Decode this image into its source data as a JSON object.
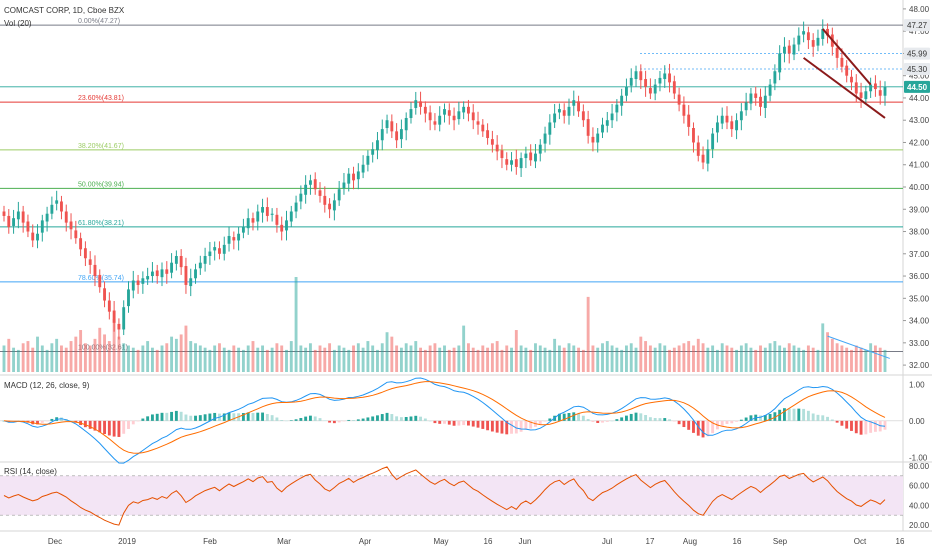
{
  "header": {
    "title": "COMCAST CORP, 1D, Cboe BZX",
    "volume_label": "Vol (20)"
  },
  "macd_label": "MACD (12, 26, close, 9)",
  "rsi_label": "RSI (14, close)",
  "colors": {
    "up": "#26a69a",
    "down": "#ef5350",
    "fib_0": "#787b86",
    "fib_236": "#e53935",
    "fib_382": "#9ccc65",
    "fib_500": "#4caf50",
    "fib_618": "#26a69a",
    "fib_786": "#42a5f5",
    "fib_100": "#787b86",
    "channel": "#8b1a1a",
    "macd_line": "#2196f3",
    "signal_line": "#ff6d00",
    "rsi_line": "#e65100",
    "rsi_band": "#f3e5f5",
    "last_price_tag": "#26a69a"
  },
  "chart_data": {
    "type": "candlestick",
    "price_ticks": [
      "48.00",
      "47.00",
      "46.00",
      "45.00",
      "44.00",
      "43.00",
      "42.00",
      "41.00",
      "40.00",
      "39.00",
      "38.00",
      "37.00",
      "36.00",
      "35.00",
      "34.00",
      "33.00",
      "32.00"
    ],
    "price_range": [
      31.6,
      48.4
    ],
    "x_labels": [
      "Dec",
      "2019",
      "Feb",
      "Mar",
      "Apr",
      "May",
      "16",
      "Jun",
      "Jul",
      "17",
      "Aug",
      "16",
      "Sep",
      "Oct",
      "16"
    ],
    "fib_levels": [
      {
        "label": "0.00%(47.27)",
        "price": 47.27,
        "color_key": "fib_0"
      },
      {
        "label": "23.60%(43.81)",
        "price": 43.81,
        "color_key": "fib_236"
      },
      {
        "label": "38.20%(41.67)",
        "price": 41.67,
        "color_key": "fib_382"
      },
      {
        "label": "50.00%(39.94)",
        "price": 39.94,
        "color_key": "fib_500"
      },
      {
        "label": "61.80%(38.21)",
        "price": 38.21,
        "color_key": "fib_618"
      },
      {
        "label": "78.60%(35.74)",
        "price": 35.74,
        "color_key": "fib_786"
      },
      {
        "label": "100.00%(32.61)",
        "price": 32.61,
        "color_key": "fib_100"
      }
    ],
    "price_tags": [
      {
        "label": "47.27",
        "price": 47.27,
        "style": "plain"
      },
      {
        "label": "45.99",
        "price": 45.99,
        "style": "plain"
      },
      {
        "label": "45.30",
        "price": 45.3,
        "style": "plain"
      },
      {
        "label": "44.50",
        "price": 44.5,
        "style": "last"
      }
    ],
    "closes": [
      38.7,
      38.2,
      38.6,
      38.9,
      38.4,
      38.0,
      37.6,
      37.9,
      38.5,
      38.8,
      39.2,
      39.4,
      38.9,
      38.4,
      38.1,
      37.7,
      37.2,
      36.8,
      36.5,
      36.0,
      35.5,
      34.9,
      34.4,
      33.9,
      33.6,
      34.6,
      35.4,
      35.8,
      35.6,
      35.9,
      36.0,
      36.2,
      36.0,
      36.3,
      36.1,
      36.6,
      36.9,
      36.4,
      35.6,
      35.9,
      36.3,
      36.6,
      36.9,
      37.1,
      37.3,
      37.0,
      37.4,
      37.8,
      37.6,
      37.9,
      38.2,
      38.6,
      38.4,
      38.9,
      39.1,
      38.7,
      38.8,
      38.3,
      38.0,
      38.5,
      38.9,
      39.3,
      39.7,
      40.1,
      40.3,
      39.9,
      39.6,
      39.2,
      39.0,
      39.4,
      39.9,
      40.2,
      40.6,
      40.3,
      40.7,
      41.0,
      41.4,
      41.7,
      42.1,
      42.6,
      43.0,
      42.5,
      42.1,
      42.6,
      43.1,
      43.5,
      43.9,
      43.6,
      43.3,
      43.0,
      42.8,
      43.2,
      43.5,
      43.2,
      43.0,
      43.4,
      43.6,
      43.3,
      43.0,
      42.8,
      42.5,
      42.2,
      41.9,
      41.6,
      41.3,
      41.0,
      41.2,
      40.9,
      41.3,
      41.5,
      41.2,
      41.5,
      41.9,
      42.4,
      42.9,
      43.3,
      43.5,
      43.2,
      43.6,
      43.9,
      43.4,
      43.0,
      42.3,
      42.0,
      42.4,
      42.8,
      43.0,
      43.3,
      43.7,
      44.1,
      44.5,
      44.9,
      45.2,
      44.8,
      44.5,
      44.2,
      44.6,
      44.9,
      45.1,
      44.7,
      44.2,
      43.7,
      43.2,
      42.7,
      42.0,
      41.4,
      41.1,
      41.7,
      42.4,
      42.9,
      43.2,
      42.9,
      42.6,
      43.0,
      43.4,
      43.8,
      44.2,
      44.0,
      43.6,
      44.1,
      44.6,
      45.2,
      46.0,
      46.3,
      46.0,
      46.4,
      46.8,
      47.0,
      46.6,
      46.3,
      46.7,
      47.1,
      46.8,
      46.3,
      45.8,
      45.4,
      45.0,
      44.7,
      44.2,
      44.0,
      44.3,
      44.6,
      44.4,
      44.1,
      44.5
    ],
    "volume": [
      1.2,
      1.5,
      1.1,
      1.0,
      1.3,
      1.4,
      1.1,
      1.6,
      1.2,
      1.0,
      1.3,
      1.5,
      1.2,
      1.1,
      1.4,
      1.6,
      1.9,
      1.3,
      1.2,
      1.5,
      2.0,
      1.7,
      1.4,
      2.4,
      1.6,
      1.3,
      1.2,
      1.1,
      1.0,
      1.2,
      1.4,
      1.1,
      1.0,
      1.2,
      1.3,
      1.6,
      1.5,
      1.7,
      2.1,
      1.4,
      1.3,
      1.2,
      1.1,
      1.0,
      1.2,
      1.3,
      1.1,
      1.0,
      1.2,
      1.1,
      1.0,
      1.2,
      1.4,
      1.1,
      1.2,
      1.0,
      1.1,
      1.3,
      1.2,
      1.0,
      1.4,
      4.3,
      1.2,
      1.1,
      1.3,
      1.0,
      1.2,
      1.1,
      1.3,
      1.0,
      1.2,
      1.1,
      1.0,
      1.2,
      1.3,
      1.1,
      1.4,
      1.2,
      1.0,
      1.3,
      1.8,
      1.6,
      1.2,
      1.1,
      1.3,
      1.2,
      1.4,
      1.1,
      1.0,
      1.2,
      1.3,
      1.1,
      1.2,
      1.0,
      1.1,
      1.2,
      2.1,
      1.3,
      1.1,
      1.0,
      1.2,
      1.1,
      1.3,
      1.4,
      1.0,
      1.2,
      1.1,
      1.9,
      1.2,
      1.1,
      1.0,
      1.3,
      1.2,
      1.1,
      1.0,
      1.5,
      1.2,
      1.1,
      1.3,
      1.2,
      1.1,
      1.0,
      3.4,
      1.2,
      1.1,
      1.3,
      1.4,
      1.2,
      1.1,
      1.0,
      1.2,
      1.3,
      1.1,
      1.6,
      1.4,
      1.2,
      1.1,
      1.3,
      1.2,
      1.0,
      1.1,
      1.2,
      1.3,
      1.4,
      1.2,
      1.5,
      1.3,
      1.1,
      1.2,
      1.0,
      1.3,
      1.2,
      1.1,
      1.0,
      1.2,
      1.3,
      1.1,
      1.0,
      1.2,
      1.1,
      1.3,
      1.4,
      1.2,
      1.1,
      1.3,
      1.2,
      1.1,
      1.0,
      1.2,
      1.1,
      1.0,
      2.2,
      1.8,
      1.5,
      1.3,
      1.2,
      1.1,
      1.0,
      1.2,
      1.1,
      1.0,
      1.3,
      1.2,
      1.1,
      1.0
    ],
    "macd_ticks": [
      "1.00",
      "0.00",
      "-1.00"
    ],
    "macd_range": [
      -1.1,
      1.2
    ],
    "rsi_ticks": [
      "80.00",
      "60.00",
      "40.00",
      "20.00"
    ],
    "rsi_range": [
      15,
      82
    ],
    "rsi_bands": [
      70,
      30
    ]
  }
}
